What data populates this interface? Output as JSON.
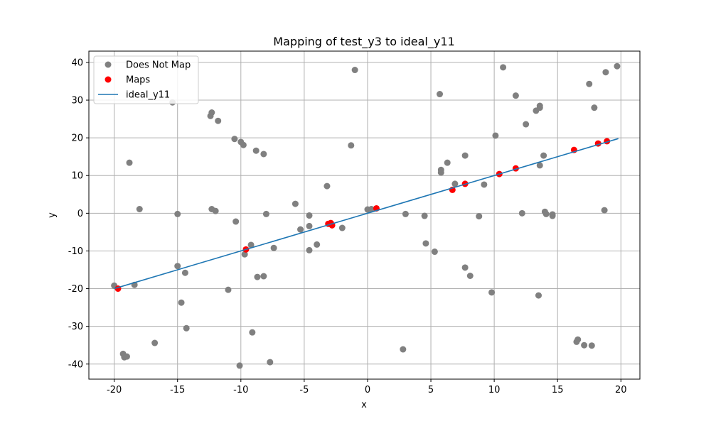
{
  "chart_data": {
    "type": "scatter",
    "title": "Mapping of test_y3 to ideal_y11",
    "xlabel": "x",
    "ylabel": "y",
    "xlim": [
      -22,
      21.5
    ],
    "ylim": [
      -44,
      43
    ],
    "xticks": [
      -20,
      -15,
      -10,
      -5,
      0,
      5,
      10,
      15,
      20
    ],
    "yticks": [
      -40,
      -30,
      -20,
      -10,
      0,
      10,
      20,
      30,
      40
    ],
    "grid": true,
    "legend_position": "upper-left",
    "series": [
      {
        "name": "Does Not Map",
        "kind": "scatter",
        "color": "#808080",
        "points": [
          [
            -20.0,
            -19.2
          ],
          [
            -19.2,
            -38.2
          ],
          [
            -19.3,
            -37.3
          ],
          [
            -19.0,
            -38.0
          ],
          [
            -18.8,
            13.4
          ],
          [
            -18.4,
            -19.0
          ],
          [
            -18.0,
            1.1
          ],
          [
            -16.8,
            -34.4
          ],
          [
            -15.4,
            29.4
          ],
          [
            -15.0,
            -0.2
          ],
          [
            -15.0,
            -14.0
          ],
          [
            -14.7,
            -23.7
          ],
          [
            -14.4,
            -15.8
          ],
          [
            -14.3,
            -30.5
          ],
          [
            -12.4,
            25.8
          ],
          [
            -12.3,
            26.7
          ],
          [
            -12.3,
            1.1
          ],
          [
            -12.0,
            0.6
          ],
          [
            -11.8,
            24.5
          ],
          [
            -11.0,
            -20.3
          ],
          [
            -10.5,
            19.7
          ],
          [
            -10.4,
            -2.2
          ],
          [
            -10.1,
            -40.4
          ],
          [
            -10.0,
            18.9
          ],
          [
            -9.8,
            18.1
          ],
          [
            -9.7,
            -10.9
          ],
          [
            -9.2,
            -8.4
          ],
          [
            -9.1,
            -31.6
          ],
          [
            -8.8,
            16.6
          ],
          [
            -8.7,
            -16.9
          ],
          [
            -8.2,
            15.7
          ],
          [
            -8.2,
            -16.7
          ],
          [
            -8.0,
            -0.2
          ],
          [
            -7.7,
            -39.5
          ],
          [
            -7.4,
            -9.2
          ],
          [
            -5.7,
            2.5
          ],
          [
            -5.3,
            -4.3
          ],
          [
            -4.6,
            -0.6
          ],
          [
            -4.6,
            -3.4
          ],
          [
            -4.6,
            -9.8
          ],
          [
            -4.0,
            -8.3
          ],
          [
            -3.2,
            7.2
          ],
          [
            -2.0,
            -3.9
          ],
          [
            -1.3,
            18.0
          ],
          [
            -1.0,
            38.0
          ],
          [
            0.0,
            1.0
          ],
          [
            0.3,
            1.1
          ],
          [
            2.8,
            -36.1
          ],
          [
            3.0,
            -0.2
          ],
          [
            4.5,
            -0.7
          ],
          [
            4.6,
            -8.0
          ],
          [
            5.3,
            -10.2
          ],
          [
            5.7,
            31.6
          ],
          [
            5.8,
            11.5
          ],
          [
            5.8,
            10.8
          ],
          [
            6.3,
            13.4
          ],
          [
            6.9,
            7.8
          ],
          [
            7.7,
            15.3
          ],
          [
            7.7,
            -14.4
          ],
          [
            8.1,
            -16.6
          ],
          [
            8.8,
            -0.8
          ],
          [
            9.2,
            7.6
          ],
          [
            9.8,
            -21.0
          ],
          [
            10.1,
            20.6
          ],
          [
            10.7,
            38.7
          ],
          [
            11.7,
            31.2
          ],
          [
            12.2,
            0.0
          ],
          [
            12.5,
            23.6
          ],
          [
            13.3,
            27.2
          ],
          [
            13.6,
            28.5
          ],
          [
            13.6,
            28.0
          ],
          [
            13.5,
            -21.8
          ],
          [
            13.6,
            12.7
          ],
          [
            13.9,
            15.3
          ],
          [
            14.0,
            0.4
          ],
          [
            14.1,
            -0.2
          ],
          [
            14.6,
            -0.7
          ],
          [
            14.6,
            -0.3
          ],
          [
            16.5,
            -34.1
          ],
          [
            16.6,
            -33.5
          ],
          [
            17.1,
            -35.0
          ],
          [
            17.5,
            34.3
          ],
          [
            17.7,
            -35.1
          ],
          [
            17.9,
            28.0
          ],
          [
            18.7,
            0.8
          ],
          [
            18.8,
            37.4
          ],
          [
            19.7,
            39.0
          ]
        ]
      },
      {
        "name": "Maps",
        "kind": "scatter",
        "color": "#ff0000",
        "points": [
          [
            -19.7,
            -20.0
          ],
          [
            -9.6,
            -9.6
          ],
          [
            -3.1,
            -2.8
          ],
          [
            -2.9,
            -2.6
          ],
          [
            -2.8,
            -3.2
          ],
          [
            0.7,
            1.3
          ],
          [
            6.7,
            6.2
          ],
          [
            7.7,
            7.8
          ],
          [
            10.4,
            10.4
          ],
          [
            11.7,
            11.9
          ],
          [
            16.3,
            16.8
          ],
          [
            18.2,
            18.5
          ],
          [
            18.9,
            19.1
          ]
        ]
      },
      {
        "name": "ideal_y11",
        "kind": "line",
        "color": "#1f77b4",
        "x": [
          -20,
          19.8
        ],
        "y": [
          -20,
          19.8
        ]
      }
    ]
  }
}
